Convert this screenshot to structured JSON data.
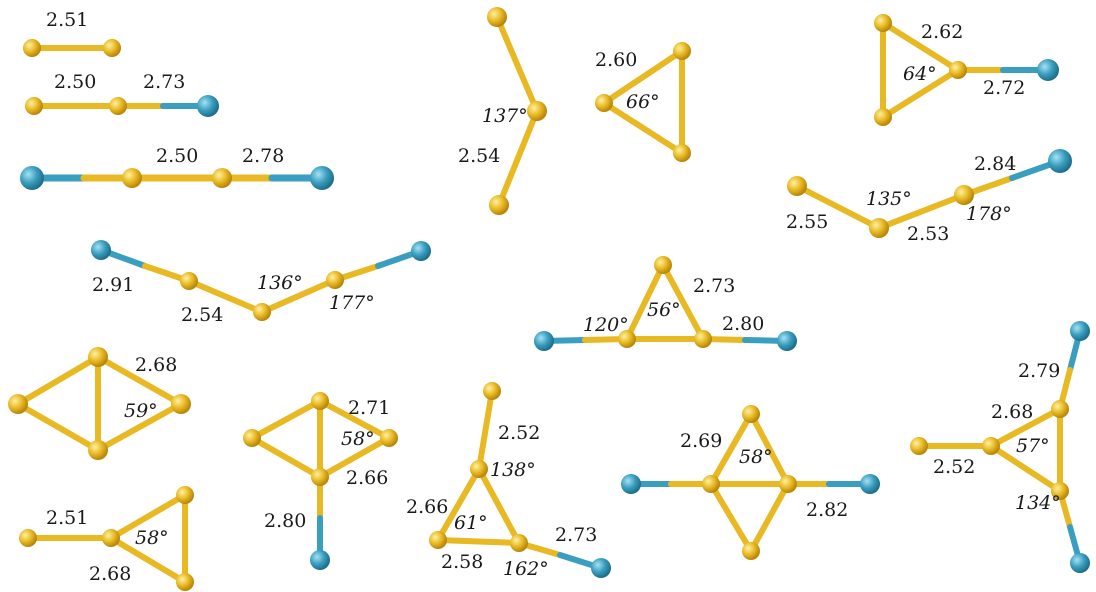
{
  "colors": {
    "gold": "#e8b923",
    "gold_dark": "#b8860b",
    "teal": "#3a9ec0",
    "teal_dark": "#1f6f8b",
    "text": "#1a1a1a"
  },
  "clusters": [
    {
      "id": "au2",
      "labels": [
        "2.51"
      ]
    },
    {
      "id": "au3-cl",
      "labels": [
        "2.50",
        "2.73"
      ]
    },
    {
      "id": "cl-au4-cl",
      "labels": [
        "2.50",
        "2.78"
      ]
    },
    {
      "id": "bent-au3",
      "labels": [
        "137°",
        "2.54"
      ]
    },
    {
      "id": "au3-triangle",
      "labels": [
        "2.60",
        "66°"
      ]
    },
    {
      "id": "triangle-cl",
      "labels": [
        "2.62",
        "64°",
        "2.72"
      ]
    },
    {
      "id": "bent-chain-cl",
      "labels": [
        "2.84",
        "135°",
        "2.55",
        "2.53",
        "178°"
      ]
    },
    {
      "id": "cl-chain-cl",
      "labels": [
        "2.91",
        "136°",
        "2.54",
        "177°"
      ]
    },
    {
      "id": "triangle-2cl",
      "labels": [
        "2.73",
        "56°",
        "120°",
        "2.80"
      ]
    },
    {
      "id": "rhombus",
      "labels": [
        "2.68",
        "59°"
      ]
    },
    {
      "id": "rhombus-cl",
      "labels": [
        "2.71",
        "58°",
        "2.66",
        "2.80"
      ]
    },
    {
      "id": "triangle-tail-cl",
      "labels": [
        "2.52",
        "138°",
        "2.66",
        "61°",
        "2.73",
        "2.58",
        "162°"
      ]
    },
    {
      "id": "rhombus-2cl",
      "labels": [
        "2.69",
        "58°",
        "2.82"
      ]
    },
    {
      "id": "triangle-au",
      "labels": [
        "2.51",
        "58°",
        "2.68"
      ]
    },
    {
      "id": "triangle-2cl-au",
      "labels": [
        "2.79",
        "2.68",
        "57°",
        "2.52",
        "134°"
      ]
    }
  ]
}
